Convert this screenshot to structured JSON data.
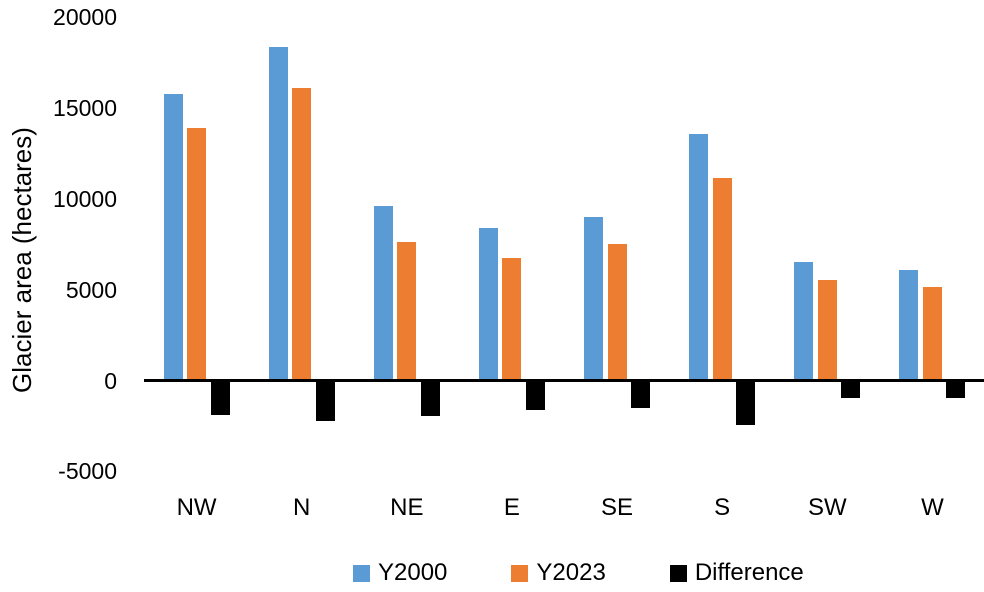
{
  "chart_data": {
    "type": "bar",
    "title": "",
    "xlabel": "",
    "ylabel": "Glacier area (hectares)",
    "categories": [
      "NW",
      "N",
      "NE",
      "E",
      "SE",
      "S",
      "SW",
      "W"
    ],
    "series": [
      {
        "name": "Y2000",
        "color": "#5B9BD5",
        "values": [
          15800,
          18350,
          9600,
          8400,
          9000,
          13600,
          6500,
          6100
        ]
      },
      {
        "name": "Y2023",
        "color": "#ED7D31",
        "values": [
          13900,
          16100,
          7650,
          6750,
          7500,
          11150,
          5550,
          5150
        ]
      },
      {
        "name": "Difference",
        "color": "#000000",
        "values": [
          -1900,
          -2250,
          -1950,
          -1650,
          -1500,
          -2450,
          -950,
          -950
        ]
      }
    ],
    "ylim": [
      -5000,
      20000
    ],
    "yticks": [
      20000,
      15000,
      10000,
      5000,
      0,
      -5000
    ],
    "grid": false,
    "legend_position": "bottom",
    "background_color": "#ffffff",
    "axis_color": "#000000"
  }
}
